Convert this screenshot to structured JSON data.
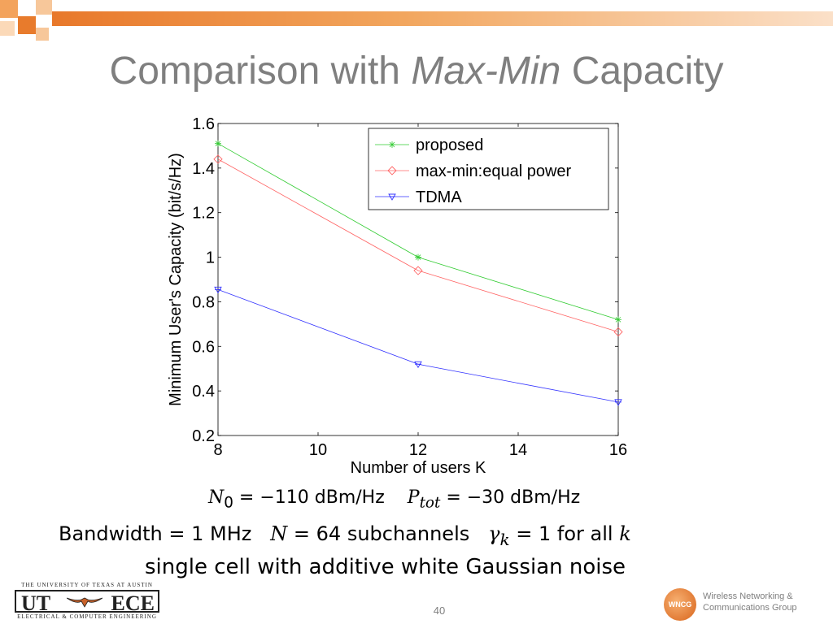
{
  "slide": {
    "title_prefix": "Comparison with ",
    "title_italic": "Max-Min",
    "title_suffix": " Capacity",
    "page_number": "40"
  },
  "chart_data": {
    "type": "line",
    "title": "",
    "xlabel": "Number of users K",
    "ylabel": "Minimum User's Capacity (bit/s/Hz)",
    "x": [
      8,
      12,
      16
    ],
    "xlim": [
      8,
      16
    ],
    "ylim": [
      0.2,
      1.6
    ],
    "xticks": [
      8,
      10,
      12,
      14,
      16
    ],
    "xtick_labels": [
      "8",
      "10",
      "12",
      "14",
      "16"
    ],
    "yticks": [
      0.2,
      0.4,
      0.6,
      0.8,
      1.0,
      1.2,
      1.4,
      1.6
    ],
    "ytick_labels": [
      "0.2",
      "0.4",
      "0.6",
      "0.8",
      "1",
      "1.2",
      "1.4",
      "1.6"
    ],
    "grid": false,
    "legend_position": "top-right",
    "series": [
      {
        "name": "proposed",
        "values": [
          1.51,
          1.0,
          0.72
        ],
        "color": "#33cc33",
        "marker": "star"
      },
      {
        "name": "max-min:equal power",
        "values": [
          1.44,
          0.94,
          0.665
        ],
        "color": "#ff6666",
        "marker": "diamond"
      },
      {
        "name": "TDMA",
        "values": [
          0.855,
          0.52,
          0.35
        ],
        "color": "#3333ff",
        "marker": "triangle-down"
      }
    ]
  },
  "params": {
    "n0_var": "N",
    "n0_sub": "0",
    "n0_rest": " = −110 dBm/Hz",
    "ptot_var": "P",
    "ptot_sub": "tot",
    "ptot_rest": " = −30 dBm/Hz",
    "bandwidth": "Bandwidth = 1 MHz",
    "n_var": "N",
    "n_rest": " = 64 subchannels",
    "gamma_var": "γ",
    "gamma_sub": "k",
    "gamma_rest": " = 1 for all ",
    "gamma_k": "k",
    "noise_line": "single cell with additive white Gaussian noise"
  },
  "footer": {
    "ut_top": "THE UNIVERSITY OF TEXAS AT AUSTIN",
    "ut_left": "UT",
    "ut_right": "ECE",
    "ut_bottom": "ELECTRICAL & COMPUTER ENGINEERING",
    "wncg_abbrev": "WNCG",
    "wncg_line1": "Wireless Networking &",
    "wncg_line2": "Communications Group"
  }
}
